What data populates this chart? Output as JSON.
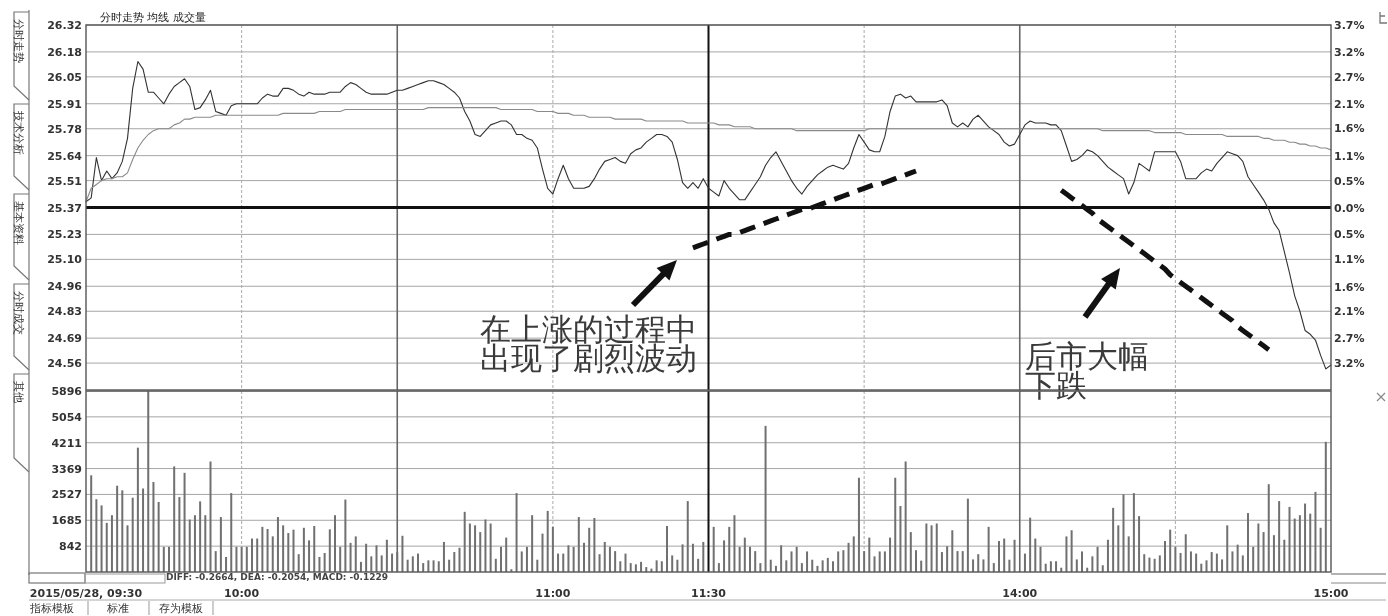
{
  "chart_data": [
    {
      "type": "line",
      "title": "分时走势 均线 成交量",
      "categories": [
        null,
        null,
        null,
        null,
        null,
        null,
        null,
        null,
        null,
        null,
        null,
        null,
        null,
        null,
        null,
        null,
        null,
        null,
        null,
        null,
        null,
        null,
        null,
        null,
        null,
        null,
        null,
        null,
        null,
        null,
        null,
        null,
        null,
        null,
        null,
        null,
        null,
        null,
        null,
        null,
        null,
        null,
        null,
        null,
        null,
        null,
        null,
        null,
        null,
        null,
        null,
        null,
        null,
        null,
        null,
        null,
        null,
        null,
        null,
        null,
        null,
        null,
        null,
        null,
        null,
        null,
        null,
        null,
        null,
        null,
        null,
        null,
        null,
        null,
        null,
        null,
        null,
        null,
        null,
        null,
        null,
        null,
        null,
        null,
        null,
        null,
        null,
        null,
        null,
        null,
        null,
        null,
        null,
        null,
        null,
        null,
        null,
        null,
        null,
        null,
        null,
        null,
        null,
        null,
        null,
        null,
        null,
        null,
        null,
        null,
        null,
        null,
        null,
        null,
        null,
        null,
        null,
        null,
        null,
        null,
        null,
        null,
        null,
        null,
        null,
        null,
        null,
        null,
        null,
        null,
        null,
        null,
        null,
        null,
        null,
        null,
        null,
        null,
        null,
        null,
        null,
        null,
        null,
        null,
        null,
        null,
        null,
        null,
        null,
        null,
        null,
        null,
        null,
        null,
        null,
        null,
        null,
        null,
        null,
        null,
        null,
        null,
        null,
        null,
        null,
        null,
        null,
        null,
        null,
        null,
        null,
        null,
        null,
        null,
        null,
        null,
        null,
        null,
        null,
        null,
        null,
        null,
        null,
        null,
        null,
        null,
        null,
        null,
        null,
        null,
        null,
        null,
        null,
        null,
        null,
        null,
        null,
        null,
        null,
        null,
        null,
        null,
        null,
        null,
        null,
        null,
        null,
        null,
        null,
        null,
        null,
        null,
        null,
        null,
        null,
        null,
        null,
        null,
        null,
        null,
        null,
        null,
        null,
        null,
        null,
        null,
        null,
        null,
        null,
        null,
        null,
        null,
        null,
        null,
        null,
        null,
        null,
        null,
        null,
        null,
        null
      ],
      "series": [
        {
          "color": "#333333",
          "values": [
            25.4,
            25.42,
            25.63,
            25.51,
            25.56,
            25.52,
            25.55,
            25.61,
            25.73,
            25.99,
            26.13,
            26.09,
            25.97,
            25.97,
            25.94,
            25.91,
            25.96,
            26.0,
            26.02,
            26.04,
            26.0,
            25.88,
            25.89,
            25.93,
            25.98,
            25.87,
            25.86,
            25.85,
            25.9,
            25.91,
            25.91,
            25.91,
            25.91,
            25.91,
            25.94,
            25.96,
            25.95,
            25.95,
            25.99,
            25.99,
            25.98,
            25.96,
            25.95,
            25.97,
            25.96,
            25.96,
            25.96,
            25.97,
            25.97,
            25.97,
            26.0,
            26.02,
            26.01,
            25.99,
            25.97,
            25.96,
            25.96,
            25.96,
            25.96,
            25.97,
            25.98,
            25.98,
            25.99,
            26.0,
            26.01,
            26.02,
            26.03,
            26.03,
            26.02,
            26.01,
            25.99,
            25.97,
            25.94,
            25.87,
            25.82,
            25.75,
            25.74,
            25.77,
            25.8,
            25.81,
            25.82,
            25.82,
            25.8,
            25.75,
            25.75,
            25.73,
            25.72,
            25.68,
            25.57,
            25.47,
            25.44,
            25.52,
            25.59,
            25.52,
            25.47,
            25.47,
            25.47,
            25.48,
            25.52,
            25.57,
            25.61,
            25.62,
            25.63,
            25.61,
            25.6,
            25.65,
            25.67,
            25.68,
            25.71,
            25.73,
            25.75,
            25.75,
            25.74,
            25.71,
            25.62,
            25.5,
            25.47,
            25.5,
            25.47,
            25.52,
            25.47,
            25.45,
            25.43,
            25.51,
            25.47,
            25.44,
            25.41,
            25.41,
            25.45,
            25.49,
            25.53,
            25.59,
            25.63,
            25.66,
            25.61,
            25.56,
            25.51,
            25.47,
            25.44,
            25.48,
            25.51,
            25.54,
            25.56,
            25.58,
            25.59,
            25.58,
            25.57,
            25.6,
            25.68,
            25.75,
            25.71,
            25.67,
            25.66,
            25.66,
            25.74,
            25.87,
            25.95,
            25.96,
            25.94,
            25.95,
            25.92,
            25.92,
            25.92,
            25.92,
            25.92,
            25.93,
            25.9,
            25.81,
            25.79,
            25.81,
            25.79,
            25.83,
            25.85,
            25.82,
            25.79,
            25.77,
            25.75,
            25.71,
            25.69,
            25.7,
            25.75,
            25.8,
            25.82,
            25.81,
            25.81,
            25.81,
            25.8,
            25.8,
            25.77,
            25.69,
            25.61,
            25.62,
            25.64,
            25.67,
            25.66,
            25.64,
            25.61,
            25.58,
            25.56,
            25.54,
            25.52,
            25.44,
            25.5,
            25.6,
            25.58,
            25.56,
            25.66,
            25.66,
            25.66,
            25.66,
            25.66,
            25.61,
            25.52,
            25.52,
            25.52,
            25.55,
            25.57,
            25.56,
            25.6,
            25.63,
            25.66,
            25.65,
            25.64,
            25.61,
            25.53,
            25.49,
            25.45,
            25.41,
            25.36,
            25.29,
            25.25,
            25.14,
            25.03,
            24.91,
            24.83,
            24.73,
            24.71,
            24.68,
            24.6,
            24.53,
            24.55
          ]
        },
        {
          "color": "#8a8a8a",
          "values": [
            25.4,
            25.47,
            25.49,
            25.51,
            25.52,
            25.52,
            25.53,
            25.53,
            25.55,
            25.62,
            25.68,
            25.72,
            25.75,
            25.77,
            25.78,
            25.78,
            25.78,
            25.8,
            25.81,
            25.83,
            25.83,
            25.84,
            25.84,
            25.84,
            25.84,
            25.85,
            25.85,
            25.85,
            25.85,
            25.85,
            25.85,
            25.85,
            25.85,
            25.85,
            25.85,
            25.85,
            25.85,
            25.85,
            25.86,
            25.86,
            25.86,
            25.86,
            25.86,
            25.86,
            25.86,
            25.87,
            25.87,
            25.87,
            25.87,
            25.87,
            25.88,
            25.88,
            25.88,
            25.88,
            25.88,
            25.88,
            25.88,
            25.88,
            25.88,
            25.88,
            25.88,
            25.88,
            25.88,
            25.88,
            25.88,
            25.88,
            25.89,
            25.89,
            25.89,
            25.89,
            25.89,
            25.89,
            25.89,
            25.89,
            25.89,
            25.89,
            25.89,
            25.89,
            25.89,
            25.89,
            25.88,
            25.88,
            25.88,
            25.88,
            25.88,
            25.88,
            25.88,
            25.87,
            25.87,
            25.87,
            25.87,
            25.86,
            25.86,
            25.86,
            25.85,
            25.85,
            25.85,
            25.84,
            25.84,
            25.84,
            25.84,
            25.84,
            25.83,
            25.83,
            25.83,
            25.83,
            25.83,
            25.83,
            25.82,
            25.82,
            25.82,
            25.82,
            25.82,
            25.82,
            25.82,
            25.82,
            25.81,
            25.81,
            25.81,
            25.81,
            25.81,
            25.81,
            25.8,
            25.8,
            25.8,
            25.79,
            25.79,
            25.79,
            25.79,
            25.78,
            25.78,
            25.78,
            25.78,
            25.78,
            25.78,
            25.78,
            25.78,
            25.77,
            25.77,
            25.77,
            25.77,
            25.77,
            25.77,
            25.77,
            25.77,
            25.77,
            25.77,
            25.77,
            25.77,
            25.77,
            25.77,
            25.78,
            25.78,
            25.78,
            25.78,
            25.78,
            25.78,
            25.78,
            25.78,
            25.78,
            25.78,
            25.78,
            25.78,
            25.78,
            25.78,
            25.78,
            25.78,
            25.78,
            25.78,
            25.78,
            25.78,
            25.78,
            25.78,
            25.78,
            25.78,
            25.78,
            25.78,
            25.78,
            25.78,
            25.78,
            25.78,
            25.78,
            25.78,
            25.78,
            25.78,
            25.78,
            25.78,
            25.78,
            25.78,
            25.78,
            25.78,
            25.78,
            25.78,
            25.78,
            25.78,
            25.78,
            25.77,
            25.77,
            25.77,
            25.77,
            25.77,
            25.77,
            25.77,
            25.77,
            25.77,
            25.77,
            25.76,
            25.76,
            25.76,
            25.76,
            25.76,
            25.76,
            25.75,
            25.75,
            25.75,
            25.75,
            25.75,
            25.75,
            25.75,
            25.75,
            25.74,
            25.74,
            25.74,
            25.74,
            25.74,
            25.74,
            25.74,
            25.73,
            25.73,
            25.72,
            25.72,
            25.72,
            25.71,
            25.71,
            25.7,
            25.7,
            25.69,
            25.69,
            25.68,
            25.68,
            25.67
          ]
        },
        {
          "type": "line",
          "line_style": "dashed",
          "color": "#111111",
          "values": [
            null,
            null,
            null,
            null,
            null,
            null,
            null,
            null,
            null,
            null,
            null,
            null,
            null,
            null,
            null,
            null,
            null,
            null,
            null,
            null,
            null,
            null,
            null,
            null,
            null,
            null,
            null,
            null,
            null,
            null,
            null,
            null,
            null,
            null,
            null,
            null,
            null,
            null,
            null,
            null,
            null,
            null,
            null,
            null,
            null,
            null,
            null,
            null,
            null,
            null,
            null,
            null,
            null,
            null,
            null,
            null,
            null,
            null,
            null,
            null,
            null,
            null,
            null,
            null,
            null,
            null,
            null,
            null,
            null,
            null,
            null,
            null,
            null,
            null,
            null,
            null,
            null,
            null,
            null,
            null,
            null,
            null,
            null,
            null,
            null,
            null,
            null,
            null,
            null,
            null,
            null,
            null,
            null,
            null,
            null,
            null,
            null,
            null,
            null,
            null,
            null,
            null,
            null,
            null,
            null,
            null,
            null,
            null,
            null,
            null,
            null,
            null,
            null,
            null,
            null,
            null,
            null,
            25.16,
            25.17,
            25.18,
            25.19,
            25.2,
            25.21,
            25.22,
            25.23,
            25.23,
            25.24,
            25.25,
            25.26,
            25.27,
            25.28,
            25.29,
            25.3,
            25.31,
            25.32,
            25.33,
            25.34,
            25.35,
            25.36,
            25.36,
            25.37,
            25.38,
            25.39,
            25.4,
            25.41,
            25.42,
            25.43,
            25.44,
            25.45,
            25.46,
            25.47,
            25.48,
            25.49,
            25.49,
            25.5,
            25.51,
            25.52,
            25.53,
            25.54,
            25.55,
            25.56,
            null,
            null,
            null,
            null,
            null,
            null,
            null,
            null,
            null,
            null,
            null,
            null,
            null,
            null,
            null,
            null,
            null,
            null,
            null,
            null,
            null,
            null,
            null,
            null,
            null,
            null,
            null,
            null,
            null,
            null,
            null,
            null,
            null,
            null,
            null,
            null,
            null,
            null,
            null,
            null,
            null,
            null,
            null,
            null,
            null,
            null,
            null,
            null,
            null,
            null,
            null,
            null,
            null,
            null,
            null,
            null,
            null,
            null,
            null,
            null,
            null,
            null,
            null,
            null,
            null,
            null,
            null,
            null,
            null,
            null,
            null,
            null,
            null,
            null,
            null,
            null,
            null,
            null,
            null,
            null
          ]
        },
        {
          "type": "line",
          "line_style": "dashed",
          "color": "#111111",
          "values": [
            null,
            null,
            null,
            null,
            null,
            null,
            null,
            null,
            null,
            null,
            null,
            null,
            null,
            null,
            null,
            null,
            null,
            null,
            null,
            null,
            null,
            null,
            null,
            null,
            null,
            null,
            null,
            null,
            null,
            null,
            null,
            null,
            null,
            null,
            null,
            null,
            null,
            null,
            null,
            null,
            null,
            null,
            null,
            null,
            null,
            null,
            null,
            null,
            null,
            null,
            null,
            null,
            null,
            null,
            null,
            null,
            null,
            null,
            null,
            null,
            null,
            null,
            null,
            null,
            null,
            null,
            null,
            null,
            null,
            null,
            null,
            null,
            null,
            null,
            null,
            null,
            null,
            null,
            null,
            null,
            null,
            null,
            null,
            null,
            null,
            null,
            null,
            null,
            null,
            null,
            null,
            null,
            null,
            null,
            null,
            null,
            null,
            null,
            null,
            null,
            null,
            null,
            null,
            null,
            null,
            null,
            null,
            null,
            null,
            null,
            null,
            null,
            null,
            null,
            null,
            null,
            null,
            null,
            null,
            null,
            null,
            null,
            null,
            null,
            null,
            null,
            null,
            null,
            null,
            null,
            null,
            null,
            null,
            null,
            null,
            null,
            null,
            null,
            null,
            null,
            null,
            null,
            null,
            null,
            null,
            null,
            null,
            null,
            null,
            null,
            null,
            null,
            null,
            null,
            null,
            null,
            null,
            null,
            null,
            null,
            null,
            null,
            null,
            null,
            null,
            null,
            null,
            null,
            null,
            null,
            null,
            null,
            null,
            null,
            null,
            null,
            null,
            null,
            null,
            null,
            null,
            null,
            null,
            null,
            null,
            null,
            null,
            null,
            25.46,
            25.44,
            25.42,
            25.4,
            25.38,
            25.36,
            25.34,
            25.31,
            25.29,
            25.27,
            25.25,
            25.23,
            25.21,
            25.19,
            25.17,
            25.15,
            25.13,
            25.11,
            25.09,
            25.07,
            25.05,
            25.02,
            25.0,
            24.98,
            24.96,
            24.94,
            24.92,
            24.9,
            24.88,
            24.86,
            24.84,
            24.82,
            24.8,
            24.78,
            24.75,
            24.73,
            24.71,
            24.69,
            24.67,
            24.65,
            24.63,
            null,
            null,
            null,
            null,
            null,
            null,
            null,
            null,
            null,
            null,
            null,
            null
          ]
        }
      ],
      "ylim": [
        24.42,
        26.32
      ],
      "yticks": [
        26.32,
        26.18,
        26.05,
        25.91,
        25.78,
        25.64,
        25.51,
        25.37,
        25.23,
        {
          "value": 25.1,
          "label": "25.10"
        },
        24.96,
        24.83,
        24.69,
        24.56
      ],
      "y2lim": [
        -3.74,
        3.74
      ],
      "y2ticks": [
        {
          "value": 3.74,
          "label": "3.7%"
        },
        {
          "value": 3.19,
          "label": "3.2%"
        },
        {
          "value": 2.68,
          "label": "2.7%"
        },
        {
          "value": 2.13,
          "label": "2.1%"
        },
        {
          "value": 1.62,
          "label": "1.6%"
        },
        {
          "value": 1.06,
          "label": "1.1%"
        },
        {
          "value": 0.55,
          "label": "0.5%"
        },
        {
          "value": 0,
          "label": "0.0%"
        },
        {
          "value": -0.55,
          "label": "0.5%"
        },
        {
          "value": -1.06,
          "label": "1.1%"
        },
        {
          "value": -1.62,
          "label": "1.6%"
        },
        {
          "value": -2.13,
          "label": "2.1%"
        },
        {
          "value": -2.68,
          "label": "2.7%"
        },
        {
          "value": -3.19,
          "label": "3.2%"
        }
      ],
      "ref_lines": [
        {
          "axis": "y",
          "value": 25.37,
          "color": "#111111"
        }
      ],
      "grid": true,
      "annotations": [
        "在上涨的过程中出现了剧烈波动",
        "后市大幅下跌",
        "分时走势",
        "技术分析",
        "基本资料",
        "分时成交",
        "其他"
      ]
    },
    {
      "type": "bar",
      "color": "#707070",
      "categories": [
        "2015/05/28, 09:30",
        null,
        null,
        null,
        null,
        null,
        null,
        null,
        null,
        null,
        null,
        null,
        null,
        null,
        null,
        null,
        null,
        null,
        null,
        null,
        null,
        null,
        null,
        null,
        null,
        null,
        null,
        null,
        null,
        null,
        "10:00",
        null,
        null,
        null,
        null,
        null,
        null,
        null,
        null,
        null,
        null,
        null,
        null,
        null,
        null,
        null,
        null,
        null,
        null,
        null,
        null,
        null,
        null,
        null,
        null,
        null,
        null,
        null,
        null,
        null,
        null,
        null,
        null,
        null,
        null,
        null,
        null,
        null,
        null,
        null,
        null,
        null,
        null,
        null,
        null,
        null,
        null,
        null,
        null,
        null,
        null,
        null,
        null,
        null,
        null,
        null,
        null,
        null,
        null,
        null,
        "11:00",
        null,
        null,
        null,
        null,
        null,
        null,
        null,
        null,
        null,
        null,
        null,
        null,
        null,
        null,
        null,
        null,
        null,
        null,
        null,
        null,
        null,
        null,
        null,
        null,
        null,
        null,
        null,
        null,
        null,
        "11:30",
        null,
        null,
        null,
        null,
        null,
        null,
        null,
        null,
        null,
        null,
        null,
        null,
        null,
        null,
        null,
        null,
        null,
        null,
        null,
        null,
        null,
        null,
        null,
        null,
        null,
        null,
        null,
        null,
        null,
        null,
        null,
        null,
        null,
        null,
        null,
        null,
        null,
        null,
        null,
        null,
        null,
        null,
        null,
        null,
        null,
        null,
        null,
        null,
        null,
        null,
        null,
        null,
        null,
        null,
        null,
        null,
        null,
        null,
        null,
        "14:00",
        null,
        null,
        null,
        null,
        null,
        null,
        null,
        null,
        null,
        null,
        null,
        null,
        null,
        null,
        null,
        null,
        null,
        null,
        null,
        null,
        null,
        null,
        null,
        null,
        null,
        null,
        null,
        null,
        null,
        null,
        null,
        null,
        null,
        null,
        null,
        null,
        null,
        null,
        null,
        null,
        null,
        null,
        null,
        null,
        null,
        null,
        null,
        null,
        null,
        null,
        null,
        null,
        null,
        null,
        null,
        null,
        null,
        null,
        null,
        "15:00"
      ],
      "values": [
        null,
        3150,
        2370,
        2170,
        1600,
        1850,
        2810,
        2660,
        1520,
        2420,
        4050,
        2720,
        5890,
        2930,
        2280,
        820,
        820,
        3440,
        2440,
        3230,
        1710,
        1850,
        2300,
        1850,
        3600,
        680,
        1790,
        490,
        2570,
        820,
        820,
        820,
        1090,
        1090,
        1470,
        1400,
        1160,
        1790,
        1520,
        1270,
        1380,
        580,
        1440,
        1030,
        1500,
        490,
        620,
        1390,
        1850,
        820,
        2360,
        950,
        1160,
        330,
        920,
        510,
        870,
        540,
        1050,
        600,
        650,
        1180,
        400,
        510,
        600,
        290,
        380,
        380,
        350,
        980,
        400,
        650,
        790,
        1960,
        1580,
        1520,
        1300,
        1710,
        1580,
        430,
        820,
        1120,
        90,
        2570,
        670,
        820,
        1850,
        400,
        1250,
        1990,
        1470,
        600,
        600,
        870,
        820,
        1790,
        950,
        1440,
        1760,
        580,
        980,
        820,
        680,
        350,
        600,
        290,
        250,
        330,
        160,
        110,
        380,
        350,
        1500,
        540,
        400,
        900,
        2310,
        920,
        430,
        980,
        null,
        1470,
        290,
        1030,
        1470,
        1850,
        820,
        1120,
        820,
        680,
        290,
        4760,
        400,
        200,
        870,
        380,
        670,
        820,
        290,
        670,
        400,
        200,
        380,
        460,
        350,
        670,
        710,
        950,
        1160,
        3070,
        680,
        1120,
        510,
        670,
        670,
        1120,
        3070,
        2150,
        3600,
        1300,
        710,
        370,
        1580,
        1520,
        1580,
        650,
        840,
        1360,
        680,
        680,
        2390,
        410,
        580,
        410,
        1470,
        290,
        1010,
        1090,
        400,
        1050,
        null,
        600,
        1770,
        1090,
        820,
        270,
        350,
        350,
        140,
        1160,
        1360,
        410,
        670,
        140,
        510,
        820,
        220,
        1050,
        2090,
        1520,
        2530,
        1160,
        2570,
        1820,
        580,
        470,
        430,
        540,
        1010,
        1380,
        820,
        620,
        1230,
        670,
        600,
        270,
        380,
        650,
        600,
        410,
        1520,
        670,
        890,
        540,
        1920,
        820,
        1580,
        1300,
        2860,
        1200,
        2310,
        1050,
        2120,
        1740,
        1850,
        2230,
        1900,
        2610,
        1440,
        4240,
        null
      ],
      "ylim": [
        0,
        5896
      ],
      "yticks": [
        5896,
        5054,
        4211,
        3369,
        2527,
        1685,
        842
      ],
      "grid": true,
      "annotations": [
        "DIFF: -0.2664, DEA: -0.2054, MACD: -0.1229",
        "指标模板",
        "标准",
        "存为模板"
      ]
    }
  ]
}
